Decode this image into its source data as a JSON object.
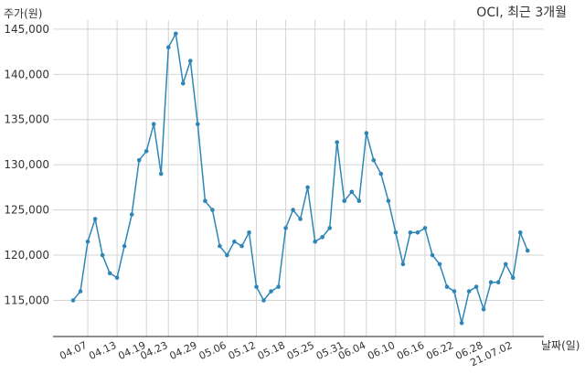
{
  "chart_data": {
    "type": "line",
    "title": "OCI, 최근 3개월",
    "ylabel": "주가(원)",
    "xlabel": "날짜(일)",
    "ylim": [
      111000,
      146000
    ],
    "yticks": [
      115000,
      120000,
      125000,
      130000,
      135000,
      140000,
      145000
    ],
    "ytick_labels": [
      "115,000",
      "120,000",
      "125,000",
      "130,000",
      "135,000",
      "140,000",
      "145,000"
    ],
    "xtick_labels": [
      "04.07",
      "04.13",
      "04.19",
      "04.23",
      "04.29",
      "05.06",
      "05.12",
      "05.18",
      "05.25",
      "05.31",
      "06.04",
      "06.10",
      "06.16",
      "06.22",
      "06.28",
      "21.07.02"
    ],
    "xtick_indices": [
      2,
      6,
      10,
      13,
      17,
      21,
      25,
      29,
      33,
      37,
      40,
      44,
      48,
      52,
      56,
      60
    ],
    "grid": true,
    "series": [
      {
        "color": "#2e86b7",
        "values": [
          115000,
          116000,
          121500,
          124000,
          120000,
          118000,
          117500,
          121000,
          124500,
          130500,
          131500,
          134500,
          129000,
          143000,
          144500,
          139000,
          141500,
          134500,
          126000,
          125000,
          121000,
          120000,
          121500,
          121000,
          122500,
          116500,
          115000,
          116000,
          116500,
          123000,
          125000,
          124000,
          127500,
          121500,
          122000,
          123000,
          132500,
          126000,
          127000,
          126000,
          133500,
          130500,
          129000,
          126000,
          122500,
          119000,
          122500,
          122500,
          123000,
          120000,
          119000,
          116500,
          116000,
          112500,
          116000,
          116500,
          114000,
          117000,
          117000,
          119000,
          117500,
          122500,
          120500
        ]
      }
    ]
  }
}
